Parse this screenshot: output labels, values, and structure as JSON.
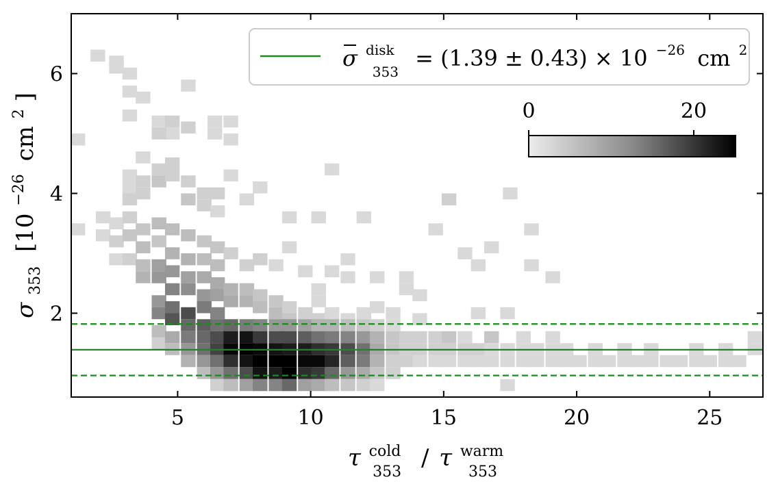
{
  "chart_data": {
    "type": "heatmap",
    "xlabel": {
      "base": "τ",
      "sub1": "353",
      "sup1": "cold",
      "slash": "/",
      "base2": "τ",
      "sub2": "353",
      "sup2": "warm"
    },
    "ylabel": {
      "base": "σ",
      "sub": "353",
      "units": "[10",
      "exp": "−26",
      "unit2": "cm",
      "exp2": "2",
      "close": "]"
    },
    "xlim": [
      1,
      27
    ],
    "ylim": [
      0.6,
      7.0
    ],
    "xticks": [
      5,
      10,
      15,
      20,
      25
    ],
    "yticks": [
      2,
      4,
      6
    ],
    "xtick_labels": [
      "5",
      "10",
      "15",
      "20",
      "25"
    ],
    "ytick_labels": [
      "2",
      "4",
      "6"
    ],
    "legend": {
      "placement": "top-right",
      "base": "σ",
      "sup": "disk",
      "sub": "353",
      "expr": "= (1.39 ± 0.43) × 10",
      "exp": "−26",
      "unit": "cm",
      "unit_exp": "2"
    },
    "colorbar": {
      "min": 0,
      "max": 25,
      "ticks": [
        0,
        20
      ],
      "tick_labels": [
        "0",
        "20"
      ],
      "placement": "upper-right inset"
    },
    "mean_line": {
      "y": 1.39,
      "color": "#1a8a1a",
      "style": "solid"
    },
    "band_lines": [
      {
        "y": 0.96,
        "style": "dashed"
      },
      {
        "y": 1.82,
        "style": "dashed"
      }
    ],
    "bin_width_x": 0.55,
    "bin_height_y": 0.2,
    "bins": [
      [
        1.25,
        4.9,
        2
      ],
      [
        1.25,
        3.4,
        2
      ],
      [
        2.0,
        6.3,
        2
      ],
      [
        2.7,
        6.2,
        2
      ],
      [
        2.7,
        6.1,
        2
      ],
      [
        3.2,
        6.0,
        2
      ],
      [
        3.2,
        5.7,
        2
      ],
      [
        3.2,
        5.3,
        2
      ],
      [
        3.7,
        5.6,
        2
      ],
      [
        4.8,
        5.0,
        2
      ],
      [
        4.3,
        5.2,
        2
      ],
      [
        4.3,
        5.0,
        3
      ],
      [
        4.8,
        5.2,
        3
      ],
      [
        5.4,
        5.8,
        2
      ],
      [
        5.4,
        5.1,
        3
      ],
      [
        6.4,
        5.0,
        2
      ],
      [
        6.4,
        5.2,
        2
      ],
      [
        7.0,
        4.9,
        2
      ],
      [
        7.0,
        5.2,
        2
      ],
      [
        3.2,
        4.3,
        2
      ],
      [
        3.7,
        4.6,
        2
      ],
      [
        3.2,
        4.1,
        2
      ],
      [
        3.2,
        3.9,
        3
      ],
      [
        3.7,
        4.2,
        3
      ],
      [
        3.7,
        4.0,
        3
      ],
      [
        4.3,
        4.4,
        3
      ],
      [
        4.3,
        4.2,
        4
      ],
      [
        4.8,
        4.5,
        3
      ],
      [
        4.8,
        4.3,
        3
      ],
      [
        5.4,
        4.2,
        3
      ],
      [
        5.4,
        3.9,
        4
      ],
      [
        6.0,
        4.0,
        3
      ],
      [
        6.0,
        3.8,
        3
      ],
      [
        6.5,
        3.7,
        2
      ],
      [
        6.5,
        4.0,
        3
      ],
      [
        7.0,
        4.3,
        2
      ],
      [
        7.6,
        3.9,
        2
      ],
      [
        8.1,
        4.1,
        2
      ],
      [
        9.2,
        3.6,
        2
      ],
      [
        9.2,
        3.1,
        2
      ],
      [
        10.3,
        3.6,
        2
      ],
      [
        10.8,
        4.4,
        2
      ],
      [
        12.0,
        3.6,
        2
      ],
      [
        15.2,
        3.9,
        3
      ],
      [
        14.7,
        3.4,
        2
      ],
      [
        17.5,
        4.0,
        2
      ],
      [
        18.3,
        3.4,
        2
      ],
      [
        2.2,
        3.6,
        2
      ],
      [
        2.2,
        3.3,
        2
      ],
      [
        2.7,
        3.5,
        2
      ],
      [
        2.7,
        3.2,
        3
      ],
      [
        3.2,
        3.6,
        3
      ],
      [
        3.2,
        3.3,
        4
      ],
      [
        3.7,
        3.4,
        4
      ],
      [
        3.7,
        3.1,
        5
      ],
      [
        4.3,
        3.5,
        5
      ],
      [
        4.3,
        3.2,
        4
      ],
      [
        4.8,
        3.4,
        5
      ],
      [
        4.8,
        3.0,
        6
      ],
      [
        5.4,
        3.3,
        5
      ],
      [
        5.4,
        2.9,
        6
      ],
      [
        6.0,
        3.2,
        4
      ],
      [
        6.0,
        2.9,
        5
      ],
      [
        6.5,
        3.1,
        4
      ],
      [
        6.5,
        2.8,
        5
      ],
      [
        7.0,
        3.0,
        3
      ],
      [
        7.6,
        2.8,
        3
      ],
      [
        8.1,
        2.9,
        3
      ],
      [
        2.7,
        2.9,
        2
      ],
      [
        3.2,
        2.9,
        3
      ],
      [
        3.7,
        2.8,
        5
      ],
      [
        3.7,
        2.6,
        6
      ],
      [
        4.3,
        2.8,
        8
      ],
      [
        4.3,
        2.6,
        9
      ],
      [
        4.8,
        2.7,
        9
      ],
      [
        4.8,
        2.4,
        11
      ],
      [
        5.4,
        2.6,
        8
      ],
      [
        5.4,
        2.4,
        10
      ],
      [
        6.0,
        2.6,
        7
      ],
      [
        6.0,
        2.3,
        9
      ],
      [
        6.5,
        2.5,
        7
      ],
      [
        6.5,
        2.3,
        8
      ],
      [
        7.0,
        2.4,
        6
      ],
      [
        7.0,
        2.2,
        7
      ],
      [
        7.6,
        2.4,
        5
      ],
      [
        7.6,
        2.2,
        6
      ],
      [
        8.1,
        2.3,
        4
      ],
      [
        8.1,
        2.1,
        5
      ],
      [
        8.7,
        2.2,
        4
      ],
      [
        8.7,
        2.0,
        5
      ],
      [
        9.2,
        2.1,
        3
      ],
      [
        9.2,
        1.9,
        4
      ],
      [
        9.8,
        2.0,
        3
      ],
      [
        10.3,
        2.2,
        2
      ],
      [
        10.3,
        1.9,
        3
      ],
      [
        10.8,
        2.0,
        2
      ],
      [
        11.4,
        1.9,
        2
      ],
      [
        12.0,
        2.0,
        2
      ],
      [
        12.5,
        2.1,
        2
      ],
      [
        13.1,
        2.0,
        2
      ],
      [
        14.1,
        2.3,
        2
      ],
      [
        14.1,
        1.9,
        2
      ],
      [
        4.3,
        2.2,
        9
      ],
      [
        4.3,
        2.0,
        11
      ],
      [
        4.8,
        2.1,
        13
      ],
      [
        4.8,
        1.9,
        16
      ],
      [
        5.4,
        2.0,
        17
      ],
      [
        5.4,
        1.8,
        14
      ],
      [
        6.0,
        2.1,
        12
      ],
      [
        6.0,
        1.8,
        15
      ],
      [
        6.5,
        2.0,
        11
      ],
      [
        6.5,
        1.8,
        13
      ],
      [
        4.3,
        1.7,
        5
      ],
      [
        4.3,
        1.5,
        3
      ],
      [
        4.8,
        1.6,
        7
      ],
      [
        4.8,
        1.4,
        5
      ],
      [
        5.4,
        1.6,
        12
      ],
      [
        5.4,
        1.4,
        9
      ],
      [
        5.4,
        1.2,
        6
      ],
      [
        6.0,
        1.6,
        14
      ],
      [
        6.0,
        1.4,
        13
      ],
      [
        6.0,
        1.2,
        9
      ],
      [
        6.0,
        1.0,
        5
      ],
      [
        6.5,
        1.6,
        17
      ],
      [
        6.5,
        1.4,
        18
      ],
      [
        6.5,
        1.2,
        13
      ],
      [
        6.5,
        1.0,
        9
      ],
      [
        6.5,
        0.8,
        3
      ],
      [
        7.0,
        1.8,
        14
      ],
      [
        7.0,
        1.6,
        22
      ],
      [
        7.0,
        1.4,
        24
      ],
      [
        7.0,
        1.2,
        20
      ],
      [
        7.0,
        1.0,
        13
      ],
      [
        7.0,
        0.8,
        5
      ],
      [
        7.6,
        1.8,
        12
      ],
      [
        7.6,
        1.6,
        23
      ],
      [
        7.6,
        1.4,
        25
      ],
      [
        7.6,
        1.2,
        23
      ],
      [
        7.6,
        1.0,
        17
      ],
      [
        7.6,
        0.8,
        8
      ],
      [
        8.1,
        1.8,
        11
      ],
      [
        8.1,
        1.6,
        19
      ],
      [
        8.1,
        1.4,
        24
      ],
      [
        8.1,
        1.2,
        25
      ],
      [
        8.1,
        1.0,
        23
      ],
      [
        8.1,
        0.8,
        11
      ],
      [
        8.7,
        1.8,
        9
      ],
      [
        8.7,
        1.6,
        17
      ],
      [
        8.7,
        1.4,
        23
      ],
      [
        8.7,
        1.2,
        25
      ],
      [
        8.7,
        1.0,
        22
      ],
      [
        8.7,
        0.8,
        11
      ],
      [
        9.2,
        1.8,
        9
      ],
      [
        9.2,
        1.6,
        17
      ],
      [
        9.2,
        1.4,
        22
      ],
      [
        9.2,
        1.2,
        25
      ],
      [
        9.2,
        1.0,
        25
      ],
      [
        9.2,
        0.8,
        14
      ],
      [
        9.8,
        1.8,
        8
      ],
      [
        9.8,
        1.6,
        15
      ],
      [
        9.8,
        1.4,
        22
      ],
      [
        9.8,
        1.2,
        24
      ],
      [
        9.8,
        1.0,
        20
      ],
      [
        9.8,
        0.8,
        8
      ],
      [
        10.3,
        1.8,
        6
      ],
      [
        10.3,
        1.6,
        13
      ],
      [
        10.3,
        1.4,
        20
      ],
      [
        10.3,
        1.2,
        24
      ],
      [
        10.3,
        1.0,
        19
      ],
      [
        10.3,
        0.8,
        7
      ],
      [
        10.8,
        1.8,
        6
      ],
      [
        10.8,
        1.6,
        12
      ],
      [
        10.8,
        1.4,
        19
      ],
      [
        10.8,
        1.2,
        21
      ],
      [
        10.8,
        1.0,
        14
      ],
      [
        10.8,
        0.8,
        5
      ],
      [
        11.4,
        1.8,
        5
      ],
      [
        11.4,
        1.6,
        11
      ],
      [
        11.4,
        1.4,
        17
      ],
      [
        11.4,
        1.2,
        15
      ],
      [
        11.4,
        1.0,
        9
      ],
      [
        11.4,
        0.8,
        4
      ],
      [
        12.0,
        1.8,
        4
      ],
      [
        12.0,
        1.6,
        9
      ],
      [
        12.0,
        1.4,
        13
      ],
      [
        12.0,
        1.2,
        12
      ],
      [
        12.0,
        1.0,
        7
      ],
      [
        12.0,
        0.8,
        3
      ],
      [
        12.5,
        1.8,
        3
      ],
      [
        12.5,
        1.6,
        6
      ],
      [
        12.5,
        1.4,
        7
      ],
      [
        12.5,
        1.2,
        6
      ],
      [
        12.5,
        1.0,
        4
      ],
      [
        12.5,
        0.8,
        2
      ],
      [
        13.1,
        1.8,
        2
      ],
      [
        13.1,
        1.6,
        4
      ],
      [
        13.1,
        1.4,
        4
      ],
      [
        13.1,
        1.2,
        3
      ],
      [
        13.1,
        1.0,
        3
      ],
      [
        13.6,
        1.6,
        3
      ],
      [
        13.6,
        1.4,
        3
      ],
      [
        13.6,
        1.2,
        3
      ],
      [
        14.1,
        1.6,
        3
      ],
      [
        14.1,
        1.4,
        3
      ],
      [
        14.1,
        1.2,
        2
      ],
      [
        14.7,
        1.6,
        3
      ],
      [
        14.7,
        1.4,
        3
      ],
      [
        14.7,
        1.2,
        2
      ],
      [
        15.2,
        1.6,
        4
      ],
      [
        15.2,
        1.4,
        3
      ],
      [
        15.2,
        1.2,
        2
      ],
      [
        15.8,
        1.6,
        2
      ],
      [
        15.8,
        1.4,
        3
      ],
      [
        15.8,
        1.2,
        2
      ],
      [
        16.3,
        1.4,
        3
      ],
      [
        16.3,
        1.2,
        2
      ],
      [
        16.8,
        1.6,
        4
      ],
      [
        16.8,
        1.4,
        2
      ],
      [
        16.8,
        1.2,
        2
      ],
      [
        17.4,
        1.4,
        2
      ],
      [
        17.4,
        1.2,
        2
      ],
      [
        17.4,
        0.8,
        2
      ],
      [
        18.0,
        1.6,
        2
      ],
      [
        18.0,
        1.4,
        2
      ],
      [
        18.0,
        1.2,
        2
      ],
      [
        18.5,
        1.4,
        2
      ],
      [
        18.5,
        1.2,
        2
      ],
      [
        19.1,
        1.6,
        2
      ],
      [
        19.1,
        1.4,
        2
      ],
      [
        19.1,
        1.2,
        2
      ],
      [
        19.6,
        1.4,
        2
      ],
      [
        19.6,
        1.2,
        2
      ],
      [
        20.1,
        1.2,
        2
      ],
      [
        20.7,
        1.4,
        2
      ],
      [
        20.7,
        1.2,
        2
      ],
      [
        21.2,
        1.2,
        2
      ],
      [
        21.8,
        1.4,
        2
      ],
      [
        21.8,
        1.2,
        2
      ],
      [
        22.3,
        1.2,
        2
      ],
      [
        22.8,
        1.4,
        2
      ],
      [
        22.8,
        1.2,
        2
      ],
      [
        23.4,
        1.2,
        2
      ],
      [
        23.9,
        1.2,
        2
      ],
      [
        24.5,
        1.4,
        2
      ],
      [
        24.5,
        1.2,
        2
      ],
      [
        25.0,
        1.2,
        2
      ],
      [
        25.6,
        1.4,
        2
      ],
      [
        25.6,
        1.2,
        2
      ],
      [
        26.1,
        1.2,
        2
      ],
      [
        26.7,
        1.6,
        2
      ],
      [
        26.7,
        1.4,
        2
      ],
      [
        16.3,
        2.0,
        2
      ],
      [
        16.8,
        3.1,
        2
      ],
      [
        15.8,
        3.0,
        2
      ],
      [
        16.3,
        2.8,
        2
      ],
      [
        17.4,
        2.0,
        2
      ],
      [
        18.3,
        2.8,
        2
      ],
      [
        19.1,
        2.6,
        2
      ],
      [
        13.6,
        2.6,
        2
      ],
      [
        13.6,
        2.4,
        2
      ],
      [
        12.5,
        2.6,
        2
      ],
      [
        11.4,
        2.9,
        2
      ],
      [
        11.4,
        2.6,
        2
      ],
      [
        10.3,
        2.4,
        2
      ],
      [
        10.8,
        2.7,
        2
      ],
      [
        8.7,
        2.8,
        2
      ],
      [
        9.8,
        2.7,
        2
      ]
    ]
  }
}
